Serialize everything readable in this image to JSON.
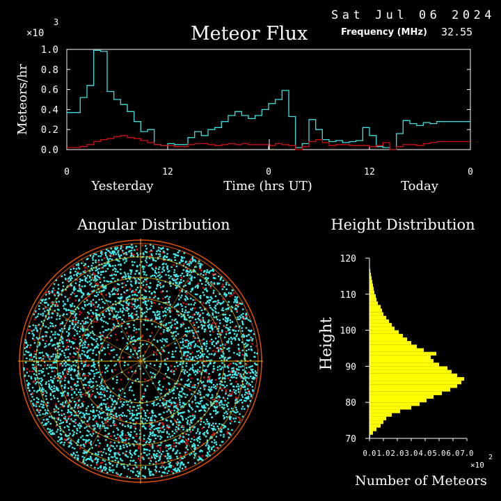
{
  "header": {
    "date": "Sat Jul 06 2024",
    "title": "Meteor Flux",
    "frequency_label": "Frequency (MHz)",
    "frequency_value": "32.55",
    "multiplier": "×10",
    "multiplier_exp": "3"
  },
  "colors": {
    "flux_current": "#40e0e0",
    "flux_average": "#d01010",
    "height_bars": "#ffff00",
    "polar_points": "#40f0f0",
    "polar_points_secondary": "#e01010",
    "polar_grid": "#f0b000",
    "polar_ring": "#e05000"
  },
  "chart_data": [
    {
      "type": "line",
      "id": "meteor-flux",
      "title": "Meteor Flux",
      "ylabel": "Meteors/hr",
      "xlabel": "Time (hrs UT)",
      "x_group_labels": [
        "Yesterday",
        "Today"
      ],
      "x_ticks": [
        "0",
        "12",
        "0",
        "12",
        "0"
      ],
      "y_ticks": [
        "0.0",
        "0.2",
        "0.4",
        "0.6",
        "0.8",
        "1.0"
      ],
      "ylim": [
        0,
        1.0
      ],
      "y_multiplier": "×10^3",
      "x_hours_range": [
        0,
        48
      ],
      "step": true,
      "series": [
        {
          "values": [
            0.37,
            0.37,
            0.52,
            0.64,
            0.99,
            0.98,
            0.58,
            0.5,
            0.45,
            0.38,
            0.28,
            0.18,
            0.2,
            0.05,
            0.04,
            0.06,
            0.05,
            0.05,
            0.12,
            0.18,
            0.14,
            0.2,
            0.22,
            0.28,
            0.34,
            0.38,
            0.34,
            0.31,
            0.34,
            0.4,
            0.46,
            0.5,
            0.59,
            0.33,
            0.02,
            0.06,
            0.3,
            0.2,
            0.1,
            0.08,
            0.09,
            0.07,
            0.08,
            0.09,
            0.22,
            0.14,
            0.03,
            0.02,
            0.0,
            0.16,
            0.29,
            0.26,
            0.24,
            0.27,
            0.26,
            0.28,
            0.28,
            0.28,
            0.28,
            0.28
          ]
        },
        {
          "values": [
            0.02,
            0.02,
            0.03,
            0.05,
            0.08,
            0.1,
            0.11,
            0.13,
            0.14,
            0.12,
            0.11,
            0.09,
            0.07,
            0.05,
            0.04,
            0.04,
            0.03,
            0.03,
            0.05,
            0.06,
            0.06,
            0.05,
            0.04,
            0.05,
            0.06,
            0.05,
            0.06,
            0.05,
            0.05,
            0.05,
            0.04,
            0.06,
            0.05,
            0.04,
            0.0,
            0.03,
            0.08,
            0.1,
            0.07,
            0.04,
            0.05,
            0.05,
            0.04,
            0.04,
            0.04,
            0.03,
            0.04,
            0.07,
            0.0,
            0.03,
            0.05,
            0.05,
            0.04,
            0.06,
            0.07,
            0.08,
            0.08,
            0.08,
            0.08,
            0.08
          ]
        }
      ]
    },
    {
      "type": "scatter",
      "id": "angular-distribution",
      "title": "Angular Distribution",
      "projection": "polar",
      "point_density": "dense"
    },
    {
      "type": "bar",
      "id": "height-distribution",
      "title": "Height Distribution",
      "orientation": "horizontal",
      "ylabel": "Height",
      "xlabel": "Number of Meteors",
      "x_multiplier": "×10^2",
      "y_ticks": [
        "70",
        "80",
        "90",
        "100",
        "110",
        "120"
      ],
      "x_ticks": [
        "0.0",
        "1.0",
        "2.0",
        "3.0",
        "4.0",
        "5.0",
        "6.0",
        "7.0"
      ],
      "ylim": [
        70,
        120
      ],
      "xlim": [
        0,
        7
      ],
      "heights": [
        71,
        72,
        73,
        74,
        75,
        76,
        77,
        78,
        79,
        80,
        81,
        82,
        83,
        84,
        85,
        86,
        87,
        88,
        89,
        90,
        91,
        92,
        93,
        94,
        95,
        96,
        97,
        98,
        99,
        100,
        101,
        102,
        103,
        104,
        105,
        106,
        107,
        108,
        109,
        110,
        111,
        112,
        113,
        114,
        115,
        116,
        117,
        118,
        119,
        120
      ],
      "values": [
        0.05,
        0.25,
        0.5,
        0.8,
        1.0,
        1.2,
        1.6,
        2.2,
        3.0,
        3.6,
        4.1,
        4.6,
        5.2,
        5.8,
        6.3,
        6.6,
        6.8,
        6.3,
        5.9,
        5.6,
        5.0,
        4.6,
        4.4,
        4.8,
        3.9,
        3.4,
        3.0,
        2.7,
        2.4,
        2.1,
        1.8,
        1.6,
        1.4,
        1.2,
        1.0,
        0.9,
        0.8,
        0.6,
        0.5,
        0.45,
        0.35,
        0.3,
        0.25,
        0.2,
        0.15,
        0.1,
        0.06,
        0.03,
        0.02,
        0.01
      ]
    }
  ]
}
